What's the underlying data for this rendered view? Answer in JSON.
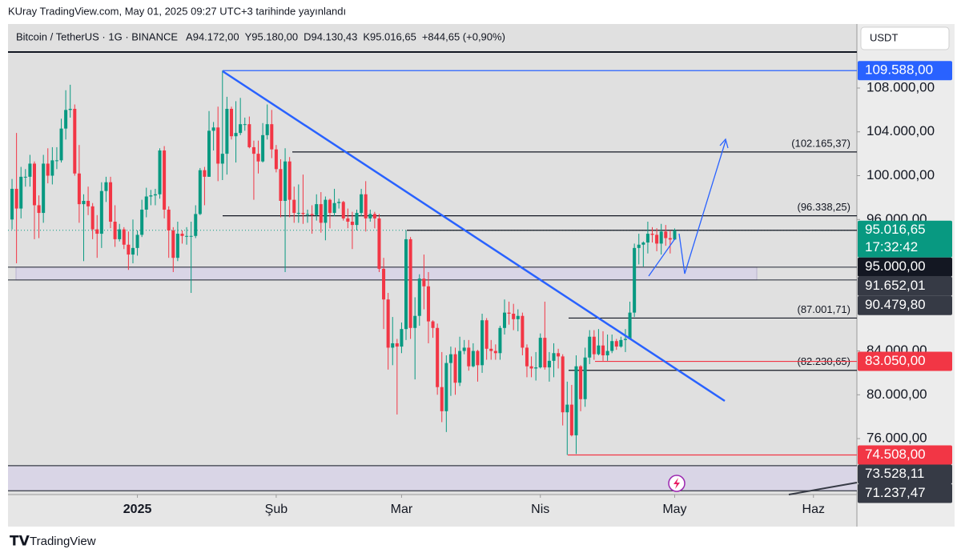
{
  "page": {
    "published": "KUray TradingView.com, May 01, 2025 09:27 UTC+3 tarihinde yayınlandı",
    "brand": "TradingView",
    "currency": "USDT"
  },
  "header": {
    "symbol": "Bitcoin / TetherUS · 1G · BINANCE",
    "ohlc": [
      {
        "key": "A",
        "value": "94.172,00"
      },
      {
        "key": "Y",
        "value": "95.180,00"
      },
      {
        "key": "D",
        "value": "94.130,43"
      },
      {
        "key": "K",
        "value": "95.016,65"
      }
    ],
    "change": "+844,65 (+0,90%)"
  },
  "chart_data": {
    "type": "candlestick",
    "up_color": "#089981",
    "down_color": "#f23645",
    "xlim": [
      -0.9,
      188.7
    ],
    "xticks": [
      {
        "value": 28,
        "label": "2025"
      },
      {
        "value": 59,
        "label": "Şub"
      },
      {
        "value": 87,
        "label": "Mar"
      },
      {
        "value": 118,
        "label": "Nis"
      },
      {
        "value": 148,
        "label": "May"
      },
      {
        "value": 179,
        "label": "Haz"
      }
    ],
    "ylim": [
      70890,
      113844
    ],
    "yticks": [
      {
        "value": 76000,
        "label": "76.000,00"
      },
      {
        "value": 80000,
        "label": "80.000,00"
      },
      {
        "value": 84000,
        "label": "84.000,00"
      },
      {
        "value": 96000,
        "label": "96.000,00"
      },
      {
        "value": 100000,
        "label": "100.000,00"
      },
      {
        "value": 104000,
        "label": "104.000,00"
      },
      {
        "value": 108000,
        "label": "108.000,00"
      }
    ],
    "open": [
      96000,
      98800,
      97000,
      99900,
      99900,
      101100,
      97300,
      96600,
      101100,
      100000,
      101400,
      101400,
      104300,
      106000,
      106100,
      100200,
      97400,
      97700,
      97200,
      95100,
      94700,
      98600,
      99400,
      95800,
      94200,
      95100,
      93700,
      92800,
      93400,
      94600,
      96900,
      98100,
      98200,
      98300,
      102300,
      96900,
      95000,
      92500,
      94700,
      94500,
      94500,
      94500,
      96500,
      100500,
      99900,
      104100,
      104400,
      101100,
      102000,
      106100,
      103600,
      103900,
      104700,
      104700,
      102600,
      102000,
      101300,
      103700,
      104700,
      102400,
      100600,
      97700,
      101300,
      97800,
      96600,
      96600,
      96500,
      96500,
      96400,
      97400,
      95700,
      97800,
      96600,
      97500,
      97600,
      96100,
      95800,
      95500,
      96600,
      98300,
      96100,
      96500,
      96100,
      91500,
      88700,
      84300,
      84700,
      84400,
      86000,
      94200,
      86100,
      87200,
      90600,
      89900,
      86700,
      86100,
      80700,
      78500,
      82900,
      83700,
      81100,
      84000,
      84300,
      82600,
      84000,
      82700,
      86800,
      84200,
      84000,
      83800,
      86100,
      87500,
      87400,
      86900,
      87200,
      84300,
      82600,
      82400,
      82500,
      85200,
      82500,
      83100,
      83800,
      83500,
      78400,
      79100,
      76300,
      82600,
      79600,
      83400,
      85300,
      83700,
      84500,
      83600,
      84000,
      84900,
      84400,
      85000,
      85100,
      87500,
      93400,
      93700,
      93900,
      94700,
      94600,
      93800,
      94900,
      94300,
      94172
    ],
    "high": [
      99700,
      103900,
      100800,
      100600,
      101900,
      101300,
      98200,
      101900,
      102500,
      102600,
      102600,
      105200,
      107800,
      108300,
      106500,
      102800,
      98300,
      99000,
      97500,
      96400,
      99400,
      99900,
      99900,
      97300,
      95600,
      95300,
      94900,
      96000,
      95000,
      97800,
      98900,
      98700,
      98800,
      102500,
      102700,
      97200,
      95300,
      95800,
      95000,
      95300,
      95800,
      97300,
      100700,
      100800,
      105900,
      104900,
      106300,
      109588,
      107200,
      106300,
      106800,
      107100,
      105300,
      105400,
      103200,
      103200,
      104800,
      106500,
      106000,
      102800,
      101500,
      102500,
      101700,
      99000,
      99200,
      100100,
      96900,
      97300,
      98300,
      98500,
      98100,
      97900,
      98800,
      97900,
      97700,
      97000,
      96700,
      96900,
      98800,
      99500,
      96900,
      96700,
      96500,
      92500,
      89300,
      87100,
      85100,
      86600,
      95000,
      94400,
      88900,
      91000,
      92800,
      91200,
      86800,
      86500,
      83900,
      83600,
      84400,
      84300,
      85300,
      85000,
      85000,
      84700,
      84100,
      87400,
      87000,
      85000,
      84600,
      86300,
      88700,
      88500,
      88300,
      87800,
      87500,
      84600,
      83500,
      83900,
      85600,
      88500,
      83900,
      84700,
      84200,
      83700,
      81200,
      80900,
      83600,
      82700,
      84300,
      85900,
      85900,
      86000,
      85800,
      85500,
      85500,
      85100,
      85300,
      86000,
      88500,
      93800,
      94700,
      94000,
      95800,
      95300,
      95200,
      95600,
      95500,
      95000,
      95180
    ],
    "low": [
      95100,
      92000,
      96100,
      99000,
      99000,
      94200,
      94300,
      95700,
      99300,
      99200,
      100600,
      101200,
      103300,
      105300,
      100000,
      95700,
      92200,
      96400,
      94200,
      92500,
      93400,
      97600,
      95200,
      93500,
      94000,
      93300,
      91400,
      92000,
      92700,
      94400,
      96200,
      97300,
      97300,
      97900,
      96100,
      92500,
      91200,
      92200,
      93800,
      93700,
      89300,
      94300,
      96400,
      97300,
      99900,
      102300,
      99500,
      99600,
      100100,
      103300,
      101200,
      103700,
      104100,
      102500,
      97800,
      100200,
      101200,
      103300,
      101600,
      100300,
      96200,
      91200,
      96200,
      95700,
      95700,
      95600,
      95700,
      94700,
      95900,
      94800,
      94100,
      95200,
      96300,
      97000,
      95900,
      95200,
      93300,
      95000,
      96300,
      94900,
      95800,
      95200,
      91200,
      86000,
      82300,
      82700,
      78200,
      83800,
      85000,
      85100,
      81400,
      86300,
      87800,
      84700,
      85200,
      80000,
      77500,
      76600,
      79900,
      80000,
      80800,
      83700,
      82200,
      82500,
      81200,
      82000,
      83200,
      83200,
      83200,
      83200,
      85500,
      86400,
      85900,
      85800,
      83600,
      81600,
      81600,
      81300,
      82400,
      82300,
      81200,
      81600,
      82400,
      77200,
      74508,
      76200,
      74600,
      78500,
      78900,
      82800,
      83200,
      83600,
      83100,
      83100,
      83800,
      84100,
      84300,
      83900,
      85100,
      87100,
      91900,
      91700,
      92900,
      93900,
      93100,
      92800,
      93600,
      92900,
      94130.43
    ],
    "close": [
      98800,
      97000,
      99900,
      99900,
      101100,
      97300,
      96600,
      101100,
      100000,
      101400,
      101400,
      104300,
      106000,
      106100,
      100200,
      97400,
      97700,
      97200,
      95100,
      94700,
      98600,
      99400,
      95800,
      94200,
      95100,
      93700,
      92800,
      93400,
      94600,
      96900,
      98100,
      98200,
      98300,
      102300,
      96900,
      95000,
      92500,
      94700,
      94500,
      94500,
      94500,
      96500,
      100500,
      99900,
      104100,
      104400,
      101100,
      102000,
      106100,
      103600,
      103900,
      104700,
      104700,
      102600,
      102000,
      101300,
      103700,
      104700,
      102400,
      100600,
      97700,
      101300,
      97800,
      96600,
      96600,
      96500,
      96500,
      96400,
      97400,
      95700,
      97800,
      96600,
      97500,
      97600,
      96100,
      95800,
      95500,
      96600,
      98300,
      96100,
      96500,
      96100,
      91500,
      88700,
      84300,
      84700,
      84400,
      86000,
      94200,
      86100,
      87200,
      90600,
      89900,
      86700,
      86100,
      80700,
      78500,
      82900,
      83700,
      81100,
      84000,
      84300,
      82600,
      84000,
      82700,
      86800,
      84200,
      84000,
      83800,
      86100,
      87500,
      87400,
      86900,
      87200,
      84300,
      82600,
      82400,
      82500,
      85200,
      82500,
      83100,
      83800,
      83500,
      78400,
      79100,
      76300,
      82600,
      79600,
      83400,
      85300,
      83700,
      84500,
      83600,
      84000,
      84900,
      84400,
      85000,
      85100,
      87500,
      93400,
      93700,
      93900,
      94700,
      94600,
      93800,
      94900,
      94300,
      94172,
      95016.65
    ],
    "levels": [
      {
        "value": 109588,
        "label": "109.588,00",
        "color": "#2962ff",
        "style": "badge"
      },
      {
        "value": 102165.37,
        "label": "(102.165,37)",
        "color": "#131722",
        "style": "text"
      },
      {
        "value": 96338.25,
        "label": "(96.338,25)",
        "color": "#131722",
        "style": "text"
      },
      {
        "value": 95016.65,
        "label": "95.016,65",
        "sublabel": "17:32:42",
        "color": "#089981",
        "style": "badge"
      },
      {
        "value": 95000,
        "label": "95.000,00",
        "color": "#131722",
        "style": "badge"
      },
      {
        "value": 91652.01,
        "label": "91.652,01",
        "color": "#363a45",
        "style": "badge"
      },
      {
        "value": 90479.8,
        "label": "90.479,80",
        "color": "#363a45",
        "style": "badge"
      },
      {
        "value": 87001.71,
        "label": "(87.001,71)",
        "color": "#131722",
        "style": "text"
      },
      {
        "value": 82230.65,
        "label": "(82.230,65)",
        "color": "#131722",
        "style": "text"
      },
      {
        "value": 83050,
        "label": "83.050,00",
        "color": "#f23645",
        "style": "badge"
      },
      {
        "value": 74508,
        "label": "74.508,00",
        "color": "#f23645",
        "style": "badge"
      },
      {
        "value": 73528.11,
        "label": "73.528,11",
        "color": "#363a45",
        "style": "badge"
      },
      {
        "value": 71237.47,
        "label": "71.237,47",
        "color": "#363a45",
        "style": "badge"
      }
    ]
  }
}
